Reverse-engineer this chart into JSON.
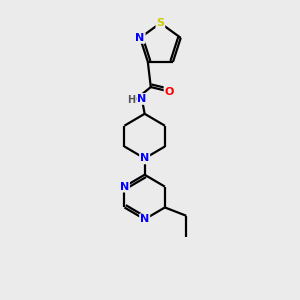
{
  "background_color": "#ebebeb",
  "bond_color": "#000000",
  "atom_colors": {
    "N": "#0000ff",
    "O": "#ff0000",
    "S": "#cccc00",
    "C": "#000000",
    "H": "#555555"
  },
  "figsize": [
    3.0,
    3.0
  ],
  "dpi": 100,
  "xlim": [
    0,
    10
  ],
  "ylim": [
    0,
    10
  ]
}
